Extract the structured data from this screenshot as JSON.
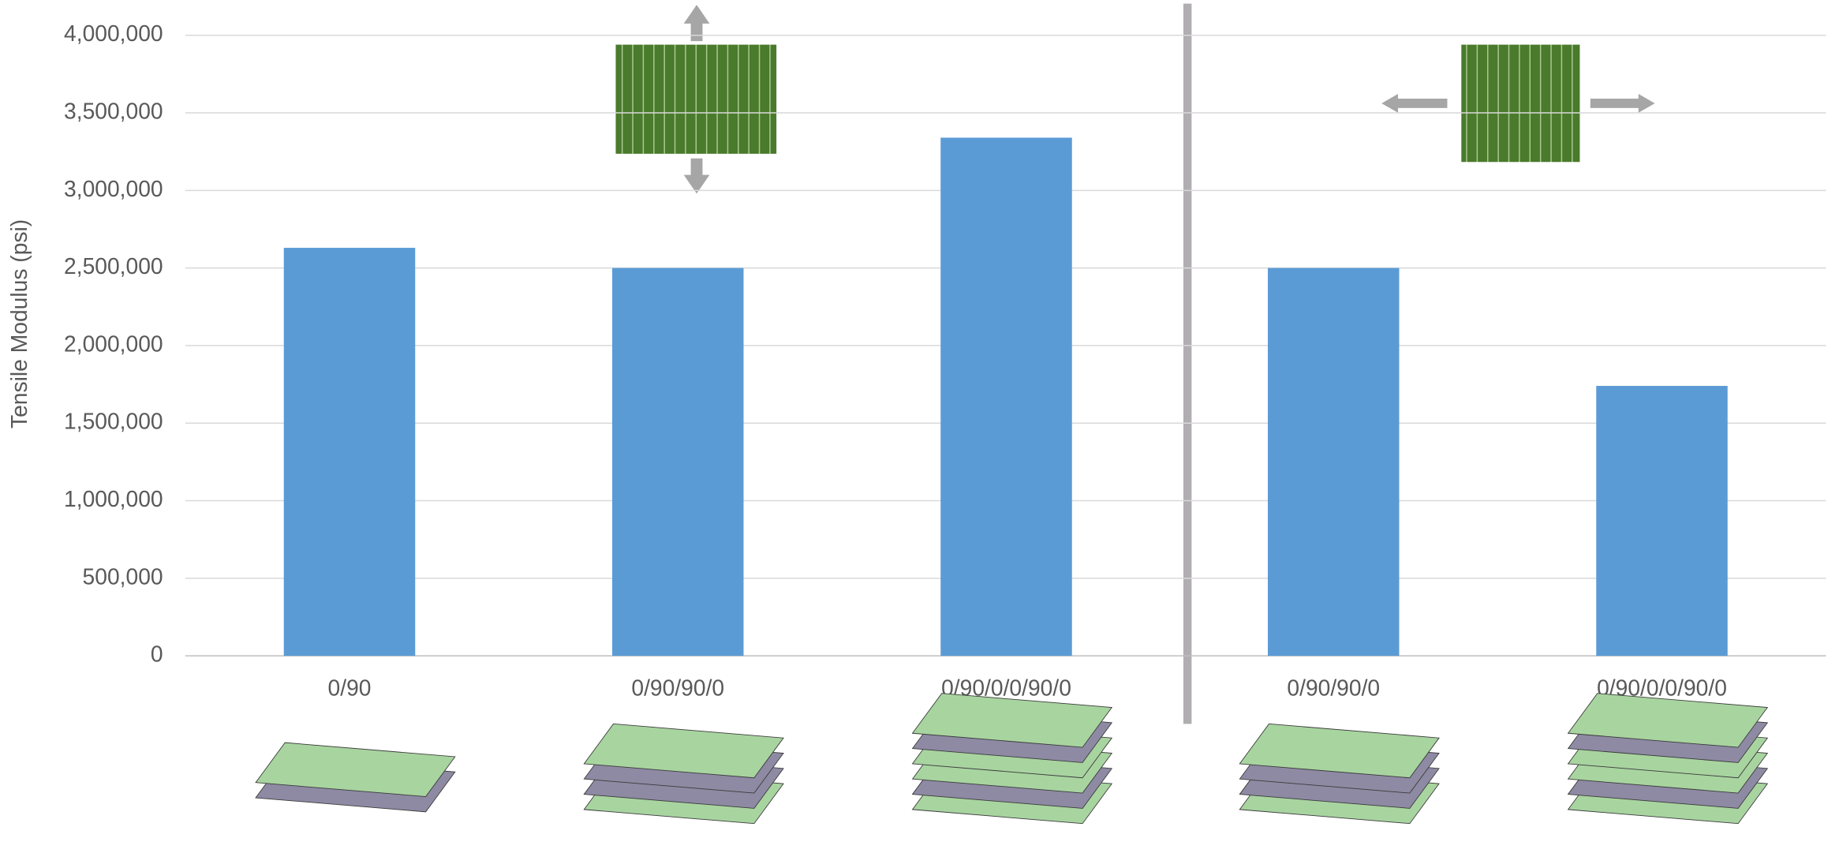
{
  "chart_data": {
    "type": "bar",
    "y_axis_title": "Tensile Modulus (psi)",
    "categories": [
      "0/90",
      "0/90/90/0",
      "0/90/0/0/90/0",
      "0/90/90/0",
      "0/90/0/0/90/0"
    ],
    "values": [
      2630000,
      2500000,
      3340000,
      2500000,
      1740000
    ],
    "color": "#5b9bd5",
    "ylim": [
      0,
      4000000
    ],
    "yticks": [
      0,
      {
        "value": 500000,
        "label": "500,000"
      },
      {
        "value": 1000000,
        "label": "1,000,000"
      },
      {
        "value": 1500000,
        "label": "1,500,000"
      },
      {
        "value": 2000000,
        "label": "2,000,000"
      },
      {
        "value": 2500000,
        "label": "2,500,000"
      },
      {
        "value": 3000000,
        "label": "3,000,000"
      },
      {
        "value": 3500000,
        "label": "3,500,000"
      },
      {
        "value": 4000000,
        "label": "4,000,000"
      }
    ],
    "grid": true
  }
}
